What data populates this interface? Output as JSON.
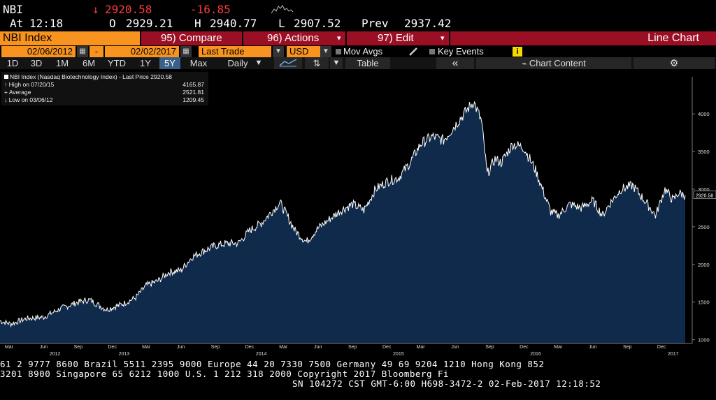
{
  "quote": {
    "ticker": "NBI",
    "last_arrow": "↓",
    "last_price": "2920.58",
    "change": "-16.85",
    "at_label": "At",
    "time": "12:18",
    "open_label": "O",
    "open": "2929.21",
    "high_label": "H",
    "high": "2940.77",
    "low_label": "L",
    "low": "2907.52",
    "prev_label": "Prev",
    "prev": "2937.42"
  },
  "function_bar": {
    "security": "NBI Index",
    "compare": "95) Compare",
    "actions": "96) Actions",
    "edit": "97) Edit",
    "chart_type": "Line Chart",
    "dropdown_glyph": "▾"
  },
  "params": {
    "start_date": "02/06/2012",
    "dash": "-",
    "end_date": "02/02/2017",
    "calendar_glyph": "▦",
    "field": "Last Trade",
    "currency": "USD",
    "mov_avgs": "Mov Avgs",
    "key_events": "Key Events",
    "info_glyph": "i"
  },
  "range": {
    "buttons": [
      "1D",
      "3D",
      "1M",
      "6M",
      "YTD",
      "1Y",
      "5Y",
      "Max"
    ],
    "selected": "5Y",
    "frequency": "Daily",
    "freq_arrow": "▼",
    "table": "Table",
    "collapse": "«",
    "chart_content": "Chart Content",
    "gear": "⚙"
  },
  "legend": {
    "title": "NBI Index (Nasdaq Biotechnology Index) - Last Price",
    "last": "2920.58",
    "high_label": "High on 07/20/15",
    "high": "4165.87",
    "avg_label": "Average",
    "avg": "2521.81",
    "low_label": "Low on 03/06/12",
    "low": "1209.45"
  },
  "chart_data": {
    "type": "area",
    "series": [
      {
        "name": "NBI Index",
        "x": [
          "2012-02-06",
          "2012-03-06",
          "2012-04-15",
          "2012-06-01",
          "2012-07-15",
          "2012-09-01",
          "2012-10-01",
          "2012-11-15",
          "2012-12-31",
          "2013-02-01",
          "2013-03-01",
          "2013-04-01",
          "2013-05-01",
          "2013-06-01",
          "2013-07-01",
          "2013-08-01",
          "2013-09-01",
          "2013-10-01",
          "2013-11-01",
          "2013-12-01",
          "2014-01-01",
          "2014-02-20",
          "2014-04-01",
          "2014-05-01",
          "2014-06-01",
          "2014-07-01",
          "2014-08-01",
          "2014-09-01",
          "2014-10-01",
          "2014-11-01",
          "2014-12-01",
          "2015-01-01",
          "2015-02-01",
          "2015-03-01",
          "2015-04-01",
          "2015-05-01",
          "2015-06-01",
          "2015-07-20",
          "2015-08-10",
          "2015-08-25",
          "2015-09-15",
          "2015-10-01",
          "2015-11-01",
          "2015-12-01",
          "2016-01-01",
          "2016-02-10",
          "2016-03-01",
          "2016-04-01",
          "2016-05-01",
          "2016-06-01",
          "2016-06-27",
          "2016-07-15",
          "2016-08-15",
          "2016-09-15",
          "2016-10-01",
          "2016-11-01",
          "2016-11-15",
          "2016-12-10",
          "2017-01-01",
          "2017-01-15",
          "2017-02-02"
        ],
        "y": [
          1250,
          1209,
          1280,
          1300,
          1410,
          1500,
          1530,
          1400,
          1480,
          1560,
          1720,
          1780,
          1900,
          1920,
          2100,
          2180,
          2250,
          2280,
          2280,
          2450,
          2550,
          2820,
          2450,
          2300,
          2480,
          2600,
          2720,
          2800,
          2720,
          3000,
          3100,
          3150,
          3350,
          3600,
          3700,
          3650,
          3850,
          4165,
          3900,
          3200,
          3400,
          3350,
          3600,
          3550,
          3250,
          2700,
          2650,
          2800,
          2750,
          2850,
          2650,
          2800,
          3000,
          3050,
          2950,
          2750,
          2650,
          3000,
          2850,
          2950,
          2920
        ]
      }
    ],
    "x_ticks": [
      "Mar",
      "Jun",
      "Sep",
      "Dec",
      "Mar",
      "Jun",
      "Sep",
      "Dec",
      "Mar",
      "Jun",
      "Sep",
      "Dec",
      "Mar",
      "Jun",
      "Sep",
      "Dec",
      "Mar",
      "Jun",
      "Sep",
      "Dec"
    ],
    "x_tick_dates": [
      "2012-03-01",
      "2012-06-01",
      "2012-09-01",
      "2012-12-01",
      "2013-03-01",
      "2013-06-01",
      "2013-09-01",
      "2013-12-01",
      "2014-03-01",
      "2014-06-01",
      "2014-09-01",
      "2014-12-01",
      "2015-03-01",
      "2015-06-01",
      "2015-09-01",
      "2015-12-01",
      "2016-03-01",
      "2016-06-01",
      "2016-09-01",
      "2016-12-01"
    ],
    "x_years": [
      "2012",
      "2013",
      "2014",
      "2015",
      "2016",
      "2017"
    ],
    "x_year_dates": [
      "2012-07-01",
      "2013-01-01",
      "2014-01-01",
      "2015-01-01",
      "2016-01-01",
      "2017-01-01"
    ],
    "y_ticks": [
      1000,
      1500,
      2000,
      2500,
      3000,
      3500,
      4000
    ],
    "ylim": [
      950,
      4400
    ],
    "last_value_label": "2920.58",
    "colors": {
      "fill": "#0f2a4b",
      "line": "#ffffff",
      "axis": "#7a7a7a"
    }
  },
  "tape": {
    "line1": "61 2 9777 8600 Brazil 5511 2395 9000 Europe 44 20 7330 7500 Germany 49 69 9204 1210 Hong Kong 852",
    "line2": "3201 8900         Singapore 65 6212 1000        U.S. 1 212 318 2000          Copyright 2017 Bloomberg Fi",
    "line3": "SN 104272 CST  GMT-6:00 H698-3472-2 02-Feb-2017 12:18:52"
  },
  "colors": {
    "orange": "#f7931e",
    "dark_red": "#9b0f24",
    "down_red": "#ff3b3b",
    "selected_blue": "#3a5f8a"
  }
}
